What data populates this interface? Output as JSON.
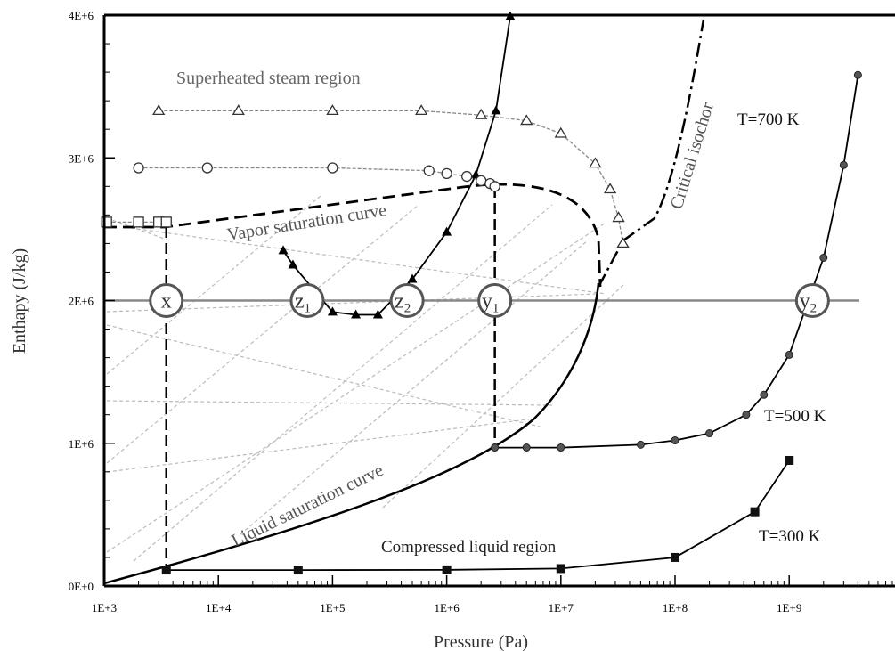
{
  "chart_data": {
    "type": "line",
    "xlabel": "Pressure (Pa)",
    "ylabel": "Enthapy (J/kg)",
    "x_scale": "log",
    "xlim": [
      1000,
      5000000000
    ],
    "ylim": [
      0,
      4000000
    ],
    "x_tick_labels": [
      "1E+3",
      "1E+4",
      "1E+5",
      "1E+6",
      "1E+7",
      "1E+8",
      "1E+9"
    ],
    "y_tick_labels": [
      "0E+0",
      "1E+6",
      "2E+6",
      "3E+6",
      "4E+6"
    ],
    "x_ticks": [
      1000,
      10000,
      100000,
      1000000,
      10000000,
      100000000,
      1000000000
    ],
    "y_ticks": [
      0,
      1000000,
      2000000,
      3000000,
      4000000
    ],
    "grid": false,
    "region_labels": {
      "superheated": "Superheated steam region",
      "compressed": "Compressed liquid region",
      "vapor_curve": "Vapor saturation curve",
      "liquid_curve": "Liquid saturation curve",
      "critical_isochor": "Critical isochor"
    },
    "series": [
      {
        "name": "T=700 K",
        "marker": "filled-triangle",
        "x": [
          37000,
          45000,
          100000,
          160000,
          250000,
          500000,
          1000000,
          1800000,
          2700000,
          3600000
        ],
        "y": [
          2350000,
          2250000,
          1920000,
          1900000,
          1900000,
          2150000,
          2480000,
          2880000,
          3330000,
          3990000
        ]
      },
      {
        "name": "T=500 K",
        "marker": "filled-circle",
        "x": [
          2640000,
          5000000,
          10000000,
          50000000,
          100000000,
          200000000,
          420000000,
          600000000,
          1000000000,
          2000000000,
          3000000000,
          4000000000
        ],
        "y": [
          970000,
          970000,
          970000,
          990000,
          1020000,
          1070000,
          1200000,
          1340000,
          1620000,
          2300000,
          2950000,
          3580000
        ]
      },
      {
        "name": "T=300 K",
        "marker": "filled-square",
        "x": [
          3500,
          50000,
          1000000,
          10000000,
          100000000,
          500000000,
          1000000000
        ],
        "y": [
          112000,
          112000,
          113000,
          122000,
          200000,
          520000,
          880000
        ]
      },
      {
        "name": "",
        "marker": "open-triangle",
        "x": [
          3000,
          15000,
          100000,
          600000,
          2000000,
          5000000,
          10000000,
          20000000,
          27000000,
          32000000,
          35000000
        ],
        "y": [
          3330000,
          3330000,
          3330000,
          3330000,
          3300000,
          3260000,
          3170000,
          2960000,
          2780000,
          2580000,
          2400000
        ]
      },
      {
        "name": "",
        "marker": "open-circle",
        "x": [
          2000,
          8000,
          100000,
          700000,
          1000000,
          1500000,
          2000000,
          2400000,
          2640000
        ],
        "y": [
          2930000,
          2930000,
          2930000,
          2910000,
          2890000,
          2870000,
          2840000,
          2820000,
          2800000
        ]
      },
      {
        "name": "",
        "marker": "open-square",
        "x": [
          1050,
          2000,
          3000,
          3500
        ],
        "y": [
          2550000,
          2550000,
          2550000,
          2550000
        ]
      }
    ],
    "annotations": [
      {
        "label": "x",
        "sub": "",
        "x": 3500,
        "y": 2000000
      },
      {
        "label": "y",
        "sub": "1",
        "x": 2640000,
        "y": 2000000
      },
      {
        "label": "z",
        "sub": "1",
        "x": 60000,
        "y": 2000000
      },
      {
        "label": "z",
        "sub": "2",
        "x": 450000,
        "y": 2000000
      },
      {
        "label": "y",
        "sub": "2",
        "x": 1600000000,
        "y": 2000000
      }
    ]
  },
  "colors": {
    "axis": "#000000",
    "enthalpy_line": "#888888",
    "dashed_iso": "#999999",
    "diagonal_grid": "#bbbbbb",
    "curve": "#000000",
    "marker_gray": "#555555"
  }
}
